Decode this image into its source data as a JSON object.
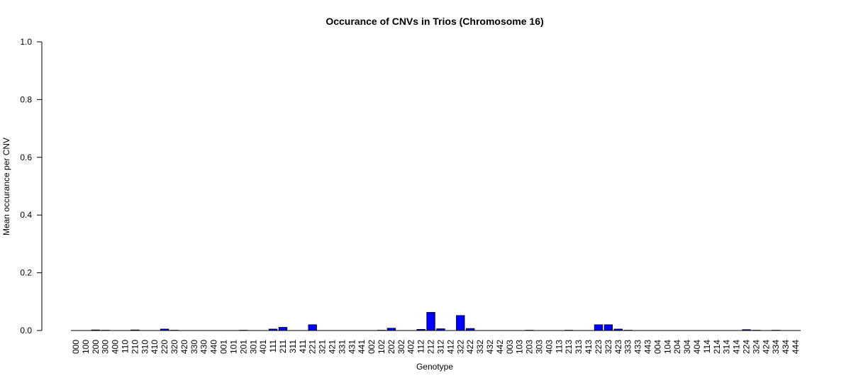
{
  "chart_data": {
    "type": "bar",
    "title": "Occurance of CNVs in Trios (Chromosome 16)",
    "xlabel": "Genotype",
    "ylabel": "Mean occurance per CNV",
    "ylim": [
      0,
      1
    ],
    "yticks": [
      "0.0",
      "0.2",
      "0.4",
      "0.6",
      "0.8",
      "1.0"
    ],
    "bar_color": "#0000ff",
    "categories": [
      "000",
      "100",
      "200",
      "300",
      "400",
      "110",
      "210",
      "310",
      "410",
      "220",
      "320",
      "420",
      "330",
      "430",
      "440",
      "001",
      "101",
      "201",
      "301",
      "401",
      "111",
      "211",
      "311",
      "411",
      "221",
      "321",
      "421",
      "331",
      "431",
      "441",
      "002",
      "102",
      "202",
      "302",
      "402",
      "112",
      "212",
      "312",
      "412",
      "322",
      "422",
      "332",
      "432",
      "442",
      "003",
      "103",
      "203",
      "303",
      "403",
      "113",
      "213",
      "313",
      "413",
      "223",
      "323",
      "423",
      "333",
      "433",
      "443",
      "004",
      "104",
      "204",
      "304",
      "404",
      "114",
      "214",
      "314",
      "414",
      "224",
      "324",
      "424",
      "334",
      "434",
      "444"
    ],
    "values": [
      0,
      0,
      0.002,
      0.001,
      0,
      0,
      0.002,
      0,
      0,
      0.005,
      0.001,
      0,
      0,
      0,
      0,
      0,
      0,
      0.001,
      0,
      0,
      0.005,
      0.011,
      0,
      0,
      0.02,
      0,
      0,
      0,
      0,
      0,
      0,
      0.001,
      0.008,
      0,
      0,
      0.004,
      0.063,
      0.006,
      0,
      0.052,
      0.007,
      0,
      0,
      0,
      0,
      0,
      0.001,
      0,
      0,
      0,
      0.001,
      0,
      0,
      0.02,
      0.02,
      0.005,
      0.001,
      0,
      0,
      0,
      0,
      0,
      0,
      0,
      0,
      0,
      0,
      0,
      0.003,
      0.001,
      0,
      0.001,
      0,
      0
    ]
  }
}
